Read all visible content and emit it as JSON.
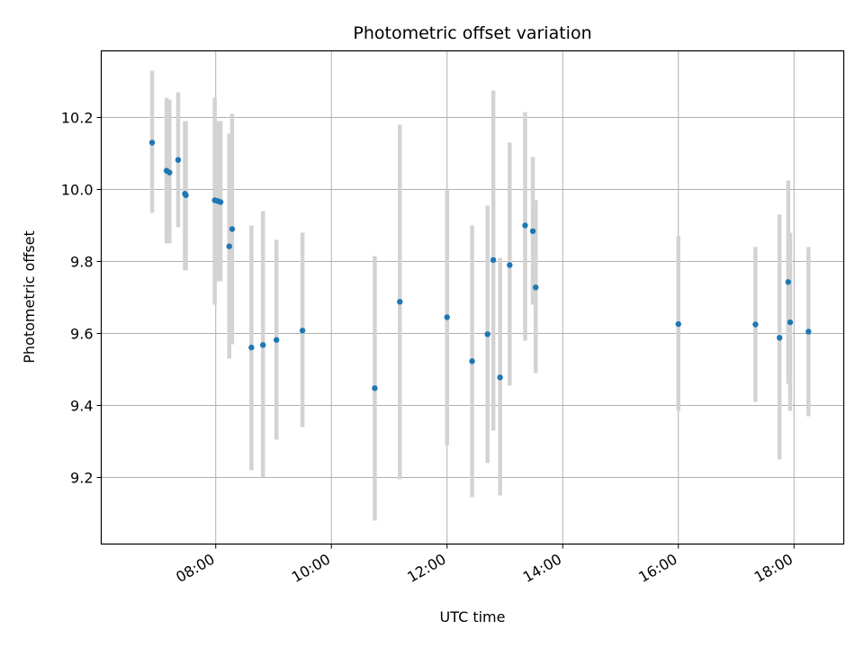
{
  "chart_data": {
    "type": "scatter",
    "title": "Photometric offset variation",
    "xlabel": "UTC time",
    "ylabel": "Photometric offset",
    "x_tick_labels": [
      "08:00",
      "10:00",
      "12:00",
      "14:00",
      "16:00",
      "18:00"
    ],
    "x_tick_hours": [
      8,
      10,
      12,
      14,
      16,
      18
    ],
    "y_ticks": [
      9.2,
      9.4,
      9.6,
      9.8,
      10.0,
      10.2
    ],
    "y_tick_labels": [
      "9.2",
      "9.4",
      "9.6",
      "9.8",
      "10.0",
      "10.2"
    ],
    "xlim_hours": [
      6.02,
      18.86
    ],
    "ylim": [
      9.015,
      10.385
    ],
    "grid": true,
    "marker_color": "#1f77b4",
    "errorbar_color": "#d3d3d3",
    "points": [
      {
        "time": "06:54",
        "y": 10.13,
        "err_low": 9.935,
        "err_high": 10.33
      },
      {
        "time": "07:09",
        "y": 10.052,
        "err_low": 9.85,
        "err_high": 10.255
      },
      {
        "time": "07:12",
        "y": 10.047,
        "err_low": 9.85,
        "err_high": 10.25
      },
      {
        "time": "07:21",
        "y": 10.082,
        "err_low": 9.895,
        "err_high": 10.27
      },
      {
        "time": "07:28",
        "y": 9.988,
        "err_low": 9.775,
        "err_high": 10.19
      },
      {
        "time": "07:29",
        "y": 9.984,
        "err_low": 9.775,
        "err_high": 10.19
      },
      {
        "time": "07:59",
        "y": 9.97,
        "err_low": 9.68,
        "err_high": 10.255
      },
      {
        "time": "08:02",
        "y": 9.968,
        "err_low": 9.745,
        "err_high": 10.19
      },
      {
        "time": "08:05",
        "y": 9.965,
        "err_low": 9.745,
        "err_high": 10.19
      },
      {
        "time": "08:14",
        "y": 9.842,
        "err_low": 9.53,
        "err_high": 10.155
      },
      {
        "time": "08:17",
        "y": 9.89,
        "err_low": 9.57,
        "err_high": 10.21
      },
      {
        "time": "08:37",
        "y": 9.561,
        "err_low": 9.22,
        "err_high": 9.9
      },
      {
        "time": "08:49",
        "y": 9.568,
        "err_low": 9.2,
        "err_high": 9.94
      },
      {
        "time": "09:03",
        "y": 9.582,
        "err_low": 9.305,
        "err_high": 9.86
      },
      {
        "time": "09:30",
        "y": 9.608,
        "err_low": 9.34,
        "err_high": 9.88
      },
      {
        "time": "10:45",
        "y": 9.448,
        "err_low": 9.08,
        "err_high": 9.815
      },
      {
        "time": "11:11",
        "y": 9.688,
        "err_low": 9.195,
        "err_high": 10.18
      },
      {
        "time": "12:00",
        "y": 9.645,
        "err_low": 9.29,
        "err_high": 10.0
      },
      {
        "time": "12:26",
        "y": 9.523,
        "err_low": 9.145,
        "err_high": 9.9
      },
      {
        "time": "12:42",
        "y": 9.598,
        "err_low": 9.24,
        "err_high": 9.955
      },
      {
        "time": "12:48",
        "y": 9.804,
        "err_low": 9.33,
        "err_high": 10.275
      },
      {
        "time": "12:55",
        "y": 9.478,
        "err_low": 9.15,
        "err_high": 9.81
      },
      {
        "time": "13:05",
        "y": 9.79,
        "err_low": 9.455,
        "err_high": 10.13
      },
      {
        "time": "13:21",
        "y": 9.9,
        "err_low": 9.58,
        "err_high": 10.215
      },
      {
        "time": "13:29",
        "y": 9.884,
        "err_low": 9.68,
        "err_high": 10.09
      },
      {
        "time": "13:32",
        "y": 9.728,
        "err_low": 9.49,
        "err_high": 9.97
      },
      {
        "time": "16:00",
        "y": 9.626,
        "err_low": 9.385,
        "err_high": 9.87
      },
      {
        "time": "17:20",
        "y": 9.625,
        "err_low": 9.41,
        "err_high": 9.84
      },
      {
        "time": "17:45",
        "y": 9.588,
        "err_low": 9.25,
        "err_high": 9.93
      },
      {
        "time": "17:54",
        "y": 9.743,
        "err_low": 9.46,
        "err_high": 10.025
      },
      {
        "time": "17:56",
        "y": 9.631,
        "err_low": 9.385,
        "err_high": 9.88
      },
      {
        "time": "18:15",
        "y": 9.605,
        "err_low": 9.37,
        "err_high": 9.84
      }
    ]
  }
}
